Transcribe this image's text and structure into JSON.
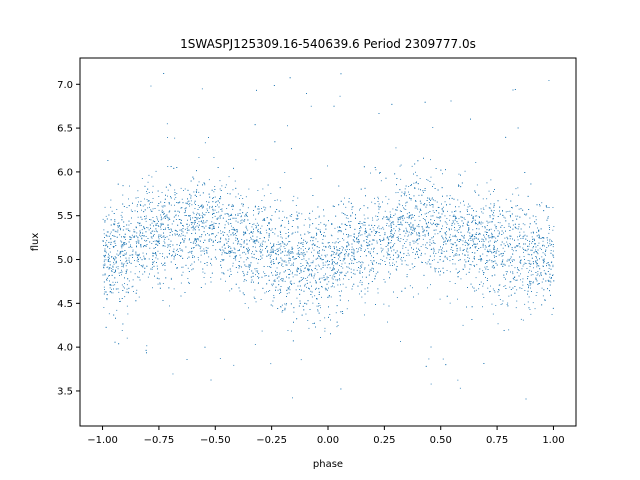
{
  "chart_data": {
    "type": "scatter",
    "title": "1SWASPJ125309.16-540639.6 Period 2309777.0s",
    "xlabel": "phase",
    "ylabel": "flux",
    "xlim": [
      -1.1,
      1.1
    ],
    "ylim": [
      3.1,
      7.3
    ],
    "x_ticks": [
      -1.0,
      -0.75,
      -0.5,
      -0.25,
      0.0,
      0.25,
      0.5,
      0.75,
      1.0
    ],
    "x_tick_labels": [
      "−1.00",
      "−0.75",
      "−0.50",
      "−0.25",
      "0.00",
      "0.25",
      "0.50",
      "0.75",
      "1.00"
    ],
    "y_ticks": [
      3.5,
      4.0,
      4.5,
      5.0,
      5.5,
      6.0,
      6.5,
      7.0
    ],
    "y_tick_labels": [
      "3.5",
      "4.0",
      "4.5",
      "5.0",
      "5.5",
      "6.0",
      "6.5",
      "7.0"
    ],
    "grid": false,
    "legend": "none",
    "marker_color": "#1f77b4",
    "series": [
      {
        "phase_range": [
          -1.0,
          1.0
        ],
        "x": [
          -1.0,
          -0.9,
          -0.8,
          -0.7,
          -0.6,
          -0.5,
          -0.4,
          -0.3,
          -0.2,
          -0.1,
          0.0,
          0.1,
          0.2,
          0.3,
          0.4,
          0.5,
          0.6,
          0.7,
          0.8,
          0.9,
          1.0
        ],
        "median_flux": [
          5.0,
          5.05,
          5.3,
          5.35,
          5.4,
          5.35,
          5.2,
          5.15,
          5.0,
          4.95,
          4.95,
          5.1,
          5.2,
          5.35,
          5.4,
          5.35,
          5.25,
          5.2,
          5.1,
          5.05,
          5.0
        ],
        "flux_spread": 0.3
      }
    ]
  }
}
